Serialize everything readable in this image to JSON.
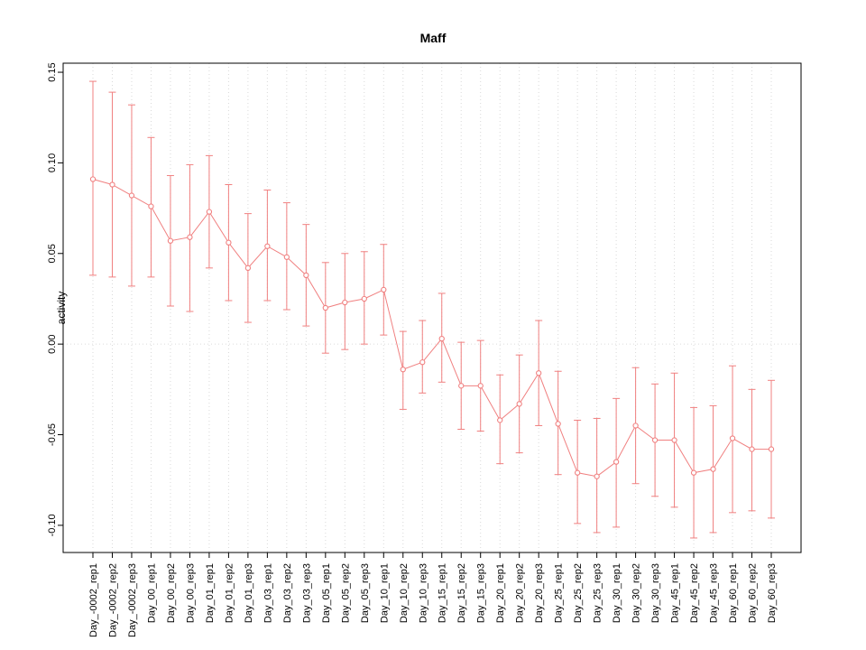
{
  "chart_data": {
    "type": "line",
    "title": "Maff",
    "xlabel": "",
    "ylabel": "activity",
    "ylim": [
      -0.115,
      0.155
    ],
    "yticks": [
      -0.1,
      -0.05,
      0.0,
      0.05,
      0.1,
      0.15
    ],
    "ytick_labels": [
      "-0.10",
      "-0.05",
      "0.00",
      "0.05",
      "0.10",
      "0.15"
    ],
    "grid": "dotted vertical gridlines at each category, dotted horizontal line at 0",
    "legend": "none",
    "marker": "open-circle",
    "error_bars": true,
    "categories": [
      "Day_-0002_rep1",
      "Day_-0002_rep2",
      "Day_-0002_rep3",
      "Day_00_rep1",
      "Day_00_rep2",
      "Day_00_rep3",
      "Day_01_rep1",
      "Day_01_rep2",
      "Day_01_rep3",
      "Day_03_rep1",
      "Day_03_rep2",
      "Day_03_rep3",
      "Day_05_rep1",
      "Day_05_rep2",
      "Day_05_rep3",
      "Day_10_rep1",
      "Day_10_rep2",
      "Day_10_rep3",
      "Day_15_rep1",
      "Day_15_rep2",
      "Day_15_rep3",
      "Day_20_rep1",
      "Day_20_rep2",
      "Day_20_rep3",
      "Day_25_rep1",
      "Day_25_rep2",
      "Day_25_rep3",
      "Day_30_rep1",
      "Day_30_rep2",
      "Day_30_rep3",
      "Day_45_rep1",
      "Day_45_rep2",
      "Day_45_rep3",
      "Day_60_rep1",
      "Day_60_rep2",
      "Day_60_rep3"
    ],
    "values": [
      0.091,
      0.088,
      0.082,
      0.076,
      0.057,
      0.059,
      0.073,
      0.056,
      0.042,
      0.054,
      0.048,
      0.038,
      0.02,
      0.023,
      0.025,
      0.03,
      -0.014,
      -0.01,
      0.003,
      -0.023,
      -0.023,
      -0.042,
      -0.033,
      -0.016,
      -0.044,
      -0.071,
      -0.073,
      -0.065,
      -0.045,
      -0.053,
      -0.053,
      -0.071,
      -0.069,
      -0.052,
      -0.058,
      -0.058
    ],
    "upper": [
      0.145,
      0.139,
      0.132,
      0.114,
      0.093,
      0.099,
      0.104,
      0.088,
      0.072,
      0.085,
      0.078,
      0.066,
      0.045,
      0.05,
      0.051,
      0.055,
      0.007,
      0.013,
      0.028,
      0.001,
      0.002,
      -0.017,
      -0.006,
      0.013,
      -0.015,
      -0.042,
      -0.041,
      -0.03,
      -0.013,
      -0.022,
      -0.016,
      -0.035,
      -0.034,
      -0.012,
      -0.025,
      -0.02
    ],
    "lower": [
      0.038,
      0.037,
      0.032,
      0.037,
      0.021,
      0.018,
      0.042,
      0.024,
      0.012,
      0.024,
      0.019,
      0.01,
      -0.005,
      -0.003,
      0.0,
      0.005,
      -0.036,
      -0.027,
      -0.021,
      -0.047,
      -0.048,
      -0.066,
      -0.06,
      -0.045,
      -0.072,
      -0.099,
      -0.104,
      -0.101,
      -0.077,
      -0.084,
      -0.09,
      -0.107,
      -0.104,
      -0.093,
      -0.092,
      -0.096
    ],
    "colors": {
      "series": "#f08080",
      "grid": "#d9d9d9",
      "zero_line": "#dcdcdc",
      "axis": "#000000",
      "background": "#ffffff"
    }
  }
}
